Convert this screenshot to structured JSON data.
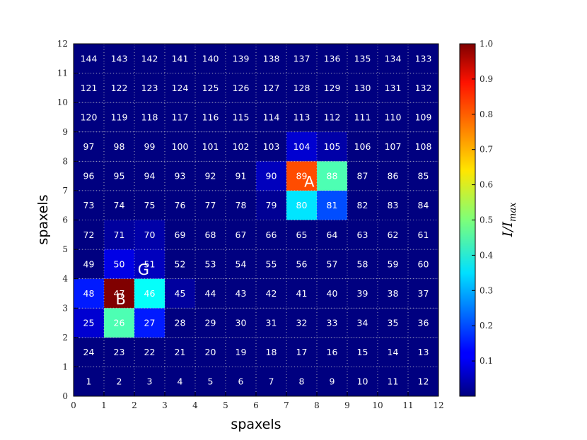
{
  "chart_data": {
    "type": "heatmap",
    "title": "",
    "xlabel": "spaxels",
    "ylabel": "spaxels",
    "xlim": [
      0,
      12
    ],
    "ylim": [
      0,
      12
    ],
    "x_ticks": [
      "0",
      "1",
      "2",
      "3",
      "4",
      "5",
      "6",
      "7",
      "8",
      "9",
      "10",
      "11",
      "12"
    ],
    "y_ticks": [
      "0",
      "1",
      "2",
      "3",
      "4",
      "5",
      "6",
      "7",
      "8",
      "9",
      "10",
      "11",
      "12"
    ],
    "grid": "dotted",
    "cells": [
      {
        "n": 1,
        "x": 0,
        "y": 0,
        "v": 0.0
      },
      {
        "n": 2,
        "x": 1,
        "y": 0,
        "v": 0.0
      },
      {
        "n": 3,
        "x": 2,
        "y": 0,
        "v": 0.0
      },
      {
        "n": 4,
        "x": 3,
        "y": 0,
        "v": 0.0
      },
      {
        "n": 5,
        "x": 4,
        "y": 0,
        "v": 0.0
      },
      {
        "n": 6,
        "x": 5,
        "y": 0,
        "v": 0.0
      },
      {
        "n": 7,
        "x": 6,
        "y": 0,
        "v": 0.0
      },
      {
        "n": 8,
        "x": 7,
        "y": 0,
        "v": 0.0
      },
      {
        "n": 9,
        "x": 8,
        "y": 0,
        "v": 0.0
      },
      {
        "n": 10,
        "x": 9,
        "y": 0,
        "v": 0.0
      },
      {
        "n": 11,
        "x": 10,
        "y": 0,
        "v": 0.0
      },
      {
        "n": 12,
        "x": 11,
        "y": 0,
        "v": 0.0
      },
      {
        "n": 24,
        "x": 0,
        "y": 1,
        "v": 0.0
      },
      {
        "n": 23,
        "x": 1,
        "y": 1,
        "v": 0.0
      },
      {
        "n": 22,
        "x": 2,
        "y": 1,
        "v": 0.0
      },
      {
        "n": 21,
        "x": 3,
        "y": 1,
        "v": 0.0
      },
      {
        "n": 20,
        "x": 4,
        "y": 1,
        "v": 0.0
      },
      {
        "n": 19,
        "x": 5,
        "y": 1,
        "v": 0.0
      },
      {
        "n": 18,
        "x": 6,
        "y": 1,
        "v": 0.0
      },
      {
        "n": 17,
        "x": 7,
        "y": 1,
        "v": 0.0
      },
      {
        "n": 16,
        "x": 8,
        "y": 1,
        "v": 0.0
      },
      {
        "n": 15,
        "x": 9,
        "y": 1,
        "v": 0.0
      },
      {
        "n": 14,
        "x": 10,
        "y": 1,
        "v": 0.0
      },
      {
        "n": 13,
        "x": 11,
        "y": 1,
        "v": 0.0
      },
      {
        "n": 25,
        "x": 0,
        "y": 2,
        "v": 0.08
      },
      {
        "n": 26,
        "x": 1,
        "y": 2,
        "v": 0.45
      },
      {
        "n": 27,
        "x": 2,
        "y": 2,
        "v": 0.15
      },
      {
        "n": 28,
        "x": 3,
        "y": 2,
        "v": 0.0
      },
      {
        "n": 29,
        "x": 4,
        "y": 2,
        "v": 0.0
      },
      {
        "n": 30,
        "x": 5,
        "y": 2,
        "v": 0.0
      },
      {
        "n": 31,
        "x": 6,
        "y": 2,
        "v": 0.0
      },
      {
        "n": 32,
        "x": 7,
        "y": 2,
        "v": 0.0
      },
      {
        "n": 33,
        "x": 8,
        "y": 2,
        "v": 0.0
      },
      {
        "n": 34,
        "x": 9,
        "y": 2,
        "v": 0.0
      },
      {
        "n": 35,
        "x": 10,
        "y": 2,
        "v": 0.0
      },
      {
        "n": 36,
        "x": 11,
        "y": 2,
        "v": 0.0
      },
      {
        "n": 48,
        "x": 0,
        "y": 3,
        "v": 0.15
      },
      {
        "n": 47,
        "x": 1,
        "y": 3,
        "v": 1.0
      },
      {
        "n": 46,
        "x": 2,
        "y": 3,
        "v": 0.38
      },
      {
        "n": 45,
        "x": 3,
        "y": 3,
        "v": 0.03
      },
      {
        "n": 44,
        "x": 4,
        "y": 3,
        "v": 0.0
      },
      {
        "n": 43,
        "x": 5,
        "y": 3,
        "v": 0.0
      },
      {
        "n": 42,
        "x": 6,
        "y": 3,
        "v": 0.0
      },
      {
        "n": 41,
        "x": 7,
        "y": 3,
        "v": 0.0
      },
      {
        "n": 40,
        "x": 8,
        "y": 3,
        "v": 0.0
      },
      {
        "n": 39,
        "x": 9,
        "y": 3,
        "v": 0.0
      },
      {
        "n": 38,
        "x": 10,
        "y": 3,
        "v": 0.0
      },
      {
        "n": 37,
        "x": 11,
        "y": 3,
        "v": 0.0
      },
      {
        "n": 49,
        "x": 0,
        "y": 4,
        "v": 0.0
      },
      {
        "n": 50,
        "x": 1,
        "y": 4,
        "v": 0.1
      },
      {
        "n": 51,
        "x": 2,
        "y": 4,
        "v": 0.06
      },
      {
        "n": 52,
        "x": 3,
        "y": 4,
        "v": 0.0
      },
      {
        "n": 53,
        "x": 4,
        "y": 4,
        "v": 0.0
      },
      {
        "n": 54,
        "x": 5,
        "y": 4,
        "v": 0.0
      },
      {
        "n": 55,
        "x": 6,
        "y": 4,
        "v": 0.0
      },
      {
        "n": 56,
        "x": 7,
        "y": 4,
        "v": 0.0
      },
      {
        "n": 57,
        "x": 8,
        "y": 4,
        "v": 0.0
      },
      {
        "n": 58,
        "x": 9,
        "y": 4,
        "v": 0.0
      },
      {
        "n": 59,
        "x": 10,
        "y": 4,
        "v": 0.0
      },
      {
        "n": 60,
        "x": 11,
        "y": 4,
        "v": 0.0
      },
      {
        "n": 72,
        "x": 0,
        "y": 5,
        "v": 0.0
      },
      {
        "n": 71,
        "x": 1,
        "y": 5,
        "v": 0.03
      },
      {
        "n": 70,
        "x": 2,
        "y": 5,
        "v": 0.04
      },
      {
        "n": 69,
        "x": 3,
        "y": 5,
        "v": 0.0
      },
      {
        "n": 68,
        "x": 4,
        "y": 5,
        "v": 0.0
      },
      {
        "n": 67,
        "x": 5,
        "y": 5,
        "v": 0.0
      },
      {
        "n": 66,
        "x": 6,
        "y": 5,
        "v": 0.0
      },
      {
        "n": 65,
        "x": 7,
        "y": 5,
        "v": 0.0
      },
      {
        "n": 64,
        "x": 8,
        "y": 5,
        "v": 0.0
      },
      {
        "n": 63,
        "x": 9,
        "y": 5,
        "v": 0.0
      },
      {
        "n": 62,
        "x": 10,
        "y": 5,
        "v": 0.0
      },
      {
        "n": 61,
        "x": 11,
        "y": 5,
        "v": 0.0
      },
      {
        "n": 73,
        "x": 0,
        "y": 6,
        "v": 0.0
      },
      {
        "n": 74,
        "x": 1,
        "y": 6,
        "v": 0.0
      },
      {
        "n": 75,
        "x": 2,
        "y": 6,
        "v": 0.0
      },
      {
        "n": 76,
        "x": 3,
        "y": 6,
        "v": 0.0
      },
      {
        "n": 77,
        "x": 4,
        "y": 6,
        "v": 0.0
      },
      {
        "n": 78,
        "x": 5,
        "y": 6,
        "v": 0.0
      },
      {
        "n": 79,
        "x": 6,
        "y": 6,
        "v": 0.02
      },
      {
        "n": 80,
        "x": 7,
        "y": 6,
        "v": 0.35
      },
      {
        "n": 81,
        "x": 8,
        "y": 6,
        "v": 0.2
      },
      {
        "n": 82,
        "x": 9,
        "y": 6,
        "v": 0.0
      },
      {
        "n": 83,
        "x": 10,
        "y": 6,
        "v": 0.0
      },
      {
        "n": 84,
        "x": 11,
        "y": 6,
        "v": 0.0
      },
      {
        "n": 96,
        "x": 0,
        "y": 7,
        "v": 0.0
      },
      {
        "n": 95,
        "x": 1,
        "y": 7,
        "v": 0.0
      },
      {
        "n": 94,
        "x": 2,
        "y": 7,
        "v": 0.0
      },
      {
        "n": 93,
        "x": 3,
        "y": 7,
        "v": 0.0
      },
      {
        "n": 92,
        "x": 4,
        "y": 7,
        "v": 0.0
      },
      {
        "n": 91,
        "x": 5,
        "y": 7,
        "v": 0.0
      },
      {
        "n": 90,
        "x": 6,
        "y": 7,
        "v": 0.06
      },
      {
        "n": 89,
        "x": 7,
        "y": 7,
        "v": 0.8
      },
      {
        "n": 88,
        "x": 8,
        "y": 7,
        "v": 0.45
      },
      {
        "n": 87,
        "x": 9,
        "y": 7,
        "v": 0.0
      },
      {
        "n": 86,
        "x": 10,
        "y": 7,
        "v": 0.0
      },
      {
        "n": 85,
        "x": 11,
        "y": 7,
        "v": 0.0
      },
      {
        "n": 97,
        "x": 0,
        "y": 8,
        "v": 0.0
      },
      {
        "n": 98,
        "x": 1,
        "y": 8,
        "v": 0.0
      },
      {
        "n": 99,
        "x": 2,
        "y": 8,
        "v": 0.0
      },
      {
        "n": 100,
        "x": 3,
        "y": 8,
        "v": 0.0
      },
      {
        "n": 101,
        "x": 4,
        "y": 8,
        "v": 0.0
      },
      {
        "n": 102,
        "x": 5,
        "y": 8,
        "v": 0.0
      },
      {
        "n": 103,
        "x": 6,
        "y": 8,
        "v": 0.0
      },
      {
        "n": 104,
        "x": 7,
        "y": 8,
        "v": 0.08
      },
      {
        "n": 105,
        "x": 8,
        "y": 8,
        "v": 0.04
      },
      {
        "n": 106,
        "x": 9,
        "y": 8,
        "v": 0.0
      },
      {
        "n": 107,
        "x": 10,
        "y": 8,
        "v": 0.0
      },
      {
        "n": 108,
        "x": 11,
        "y": 8,
        "v": 0.0
      },
      {
        "n": 120,
        "x": 0,
        "y": 9,
        "v": 0.0
      },
      {
        "n": 119,
        "x": 1,
        "y": 9,
        "v": 0.0
      },
      {
        "n": 118,
        "x": 2,
        "y": 9,
        "v": 0.0
      },
      {
        "n": 117,
        "x": 3,
        "y": 9,
        "v": 0.0
      },
      {
        "n": 116,
        "x": 4,
        "y": 9,
        "v": 0.0
      },
      {
        "n": 115,
        "x": 5,
        "y": 9,
        "v": 0.0
      },
      {
        "n": 114,
        "x": 6,
        "y": 9,
        "v": 0.0
      },
      {
        "n": 113,
        "x": 7,
        "y": 9,
        "v": 0.0
      },
      {
        "n": 112,
        "x": 8,
        "y": 9,
        "v": 0.0
      },
      {
        "n": 111,
        "x": 9,
        "y": 9,
        "v": 0.0
      },
      {
        "n": 110,
        "x": 10,
        "y": 9,
        "v": 0.0
      },
      {
        "n": 109,
        "x": 11,
        "y": 9,
        "v": 0.0
      },
      {
        "n": 121,
        "x": 0,
        "y": 10,
        "v": 0.0
      },
      {
        "n": 122,
        "x": 1,
        "y": 10,
        "v": 0.0
      },
      {
        "n": 123,
        "x": 2,
        "y": 10,
        "v": 0.0
      },
      {
        "n": 124,
        "x": 3,
        "y": 10,
        "v": 0.0
      },
      {
        "n": 125,
        "x": 4,
        "y": 10,
        "v": 0.0
      },
      {
        "n": 126,
        "x": 5,
        "y": 10,
        "v": 0.0
      },
      {
        "n": 127,
        "x": 6,
        "y": 10,
        "v": 0.0
      },
      {
        "n": 128,
        "x": 7,
        "y": 10,
        "v": 0.0
      },
      {
        "n": 129,
        "x": 8,
        "y": 10,
        "v": 0.0
      },
      {
        "n": 130,
        "x": 9,
        "y": 10,
        "v": 0.0
      },
      {
        "n": 131,
        "x": 10,
        "y": 10,
        "v": 0.0
      },
      {
        "n": 132,
        "x": 11,
        "y": 10,
        "v": 0.0
      },
      {
        "n": 144,
        "x": 0,
        "y": 11,
        "v": 0.0
      },
      {
        "n": 143,
        "x": 1,
        "y": 11,
        "v": 0.0
      },
      {
        "n": 142,
        "x": 2,
        "y": 11,
        "v": 0.0
      },
      {
        "n": 141,
        "x": 3,
        "y": 11,
        "v": 0.0
      },
      {
        "n": 140,
        "x": 4,
        "y": 11,
        "v": 0.0
      },
      {
        "n": 139,
        "x": 5,
        "y": 11,
        "v": 0.0
      },
      {
        "n": 138,
        "x": 6,
        "y": 11,
        "v": 0.0
      },
      {
        "n": 137,
        "x": 7,
        "y": 11,
        "v": 0.0
      },
      {
        "n": 136,
        "x": 8,
        "y": 11,
        "v": 0.0
      },
      {
        "n": 135,
        "x": 9,
        "y": 11,
        "v": 0.0
      },
      {
        "n": 134,
        "x": 10,
        "y": 11,
        "v": 0.0
      },
      {
        "n": 133,
        "x": 11,
        "y": 11,
        "v": 0.0
      }
    ],
    "annotations": [
      {
        "text": "A",
        "x": 7.75,
        "y": 7.3
      },
      {
        "text": "B",
        "x": 1.55,
        "y": 3.3
      },
      {
        "text": "G",
        "x": 2.3,
        "y": 4.3
      }
    ],
    "colorbar": {
      "colormap": "jet",
      "range": [
        0,
        1
      ],
      "ticks": [
        "0.1",
        "0.2",
        "0.3",
        "0.4",
        "0.5",
        "0.6",
        "0.7",
        "0.8",
        "0.9",
        "1.0"
      ],
      "label": "I/I_max"
    }
  }
}
